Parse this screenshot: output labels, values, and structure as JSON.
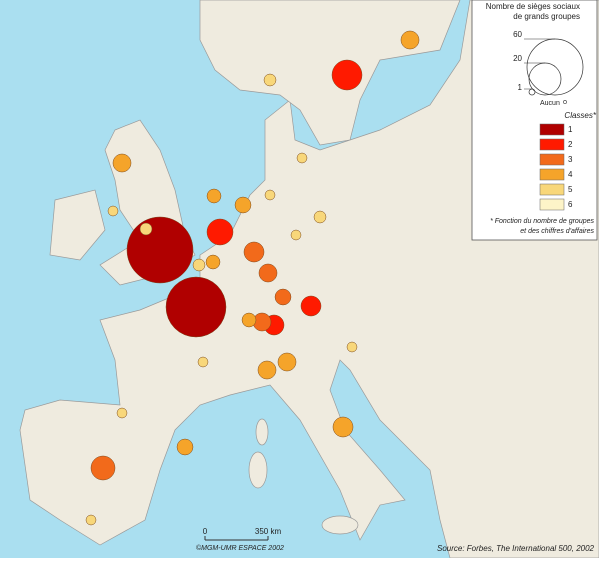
{
  "legend": {
    "title_lines": [
      "Nombre de sièges sociaux",
      "de grands groupes"
    ],
    "size_labels": [
      "60",
      "20",
      "1"
    ],
    "none_label": "Aucun",
    "classes_title": "Classes*",
    "classes": [
      {
        "label": "1",
        "color": "#b00000"
      },
      {
        "label": "2",
        "color": "#ff1a00"
      },
      {
        "label": "3",
        "color": "#f26a1b"
      },
      {
        "label": "4",
        "color": "#f5a42a"
      },
      {
        "label": "5",
        "color": "#f8d77a"
      },
      {
        "label": "6",
        "color": "#fdf4c8"
      }
    ],
    "note_lines": [
      "* Fonction du nombre de groupes",
      "et des chiffres d'affaires"
    ]
  },
  "scale": {
    "start": "0",
    "end": "350 km"
  },
  "credit": "©MGM-UMR ESPACE 2002",
  "source": "Source: Forbes, The International 500, 2002"
}
